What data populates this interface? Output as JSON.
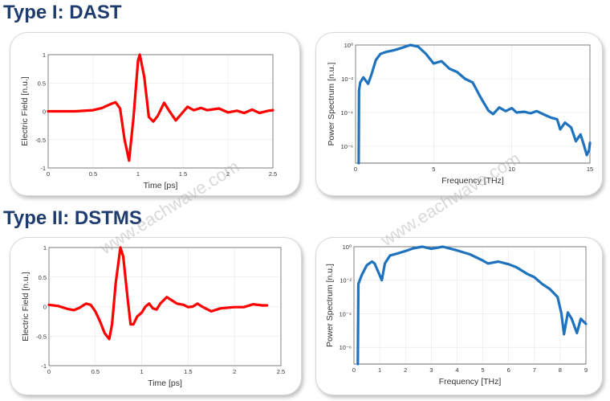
{
  "titles": [
    "Type I: DAST",
    "Type II: DSTMS"
  ],
  "watermark": "www.eachwave.com",
  "chart_data": [
    {
      "type": "line",
      "group": "Type I: DAST",
      "xlabel": "Time [ps]",
      "ylabel": "Electric Field [n.u.]",
      "xlim": [
        0,
        2.5
      ],
      "ylim": [
        -1,
        1
      ],
      "yscale": "linear",
      "grid": true,
      "color": "#ff0000",
      "xticks": [
        0,
        0.5,
        1,
        1.5,
        2,
        2.5
      ],
      "xticklabels": [
        "0",
        "0.5",
        "1",
        "1.5",
        "2",
        "2.5"
      ],
      "yticks": [
        -1,
        -0.5,
        0,
        0.5,
        1
      ],
      "yticklabels": [
        "-1",
        "-0.5",
        "0",
        "0.5",
        "1"
      ],
      "x": [
        0,
        0.3,
        0.5,
        0.6,
        0.7,
        0.75,
        0.8,
        0.85,
        0.9,
        0.95,
        1.0,
        1.02,
        1.07,
        1.12,
        1.17,
        1.22,
        1.29,
        1.35,
        1.42,
        1.48,
        1.55,
        1.62,
        1.7,
        1.77,
        1.9,
        2.0,
        2.1,
        2.18,
        2.27,
        2.35,
        2.45,
        2.5
      ],
      "y": [
        0,
        0,
        0.02,
        0.06,
        0.13,
        0.16,
        0.05,
        -0.5,
        -0.87,
        -0.1,
        0.9,
        1.0,
        0.6,
        -0.1,
        -0.18,
        -0.08,
        0.15,
        0.0,
        -0.16,
        -0.05,
        0.08,
        0.02,
        0.06,
        0.02,
        0.05,
        -0.02,
        0.01,
        -0.03,
        0.03,
        -0.03,
        0.01,
        0.02
      ]
    },
    {
      "type": "line",
      "group": "Type I: DAST",
      "xlabel": "Frequency [THz]",
      "ylabel": "Power Spectrum [n.u.]",
      "xlim": [
        0,
        15
      ],
      "ylim": [
        1e-07,
        1
      ],
      "yscale": "log",
      "grid": true,
      "color": "#1f73be",
      "xticks": [
        0,
        5,
        10,
        15
      ],
      "xticklabels": [
        "0",
        "5",
        "10",
        "15"
      ],
      "yticks": [
        1,
        0.01,
        0.0001,
        1e-06
      ],
      "yticklabels": [
        "10⁰",
        "10⁻²",
        "10⁻⁴",
        "10⁻⁶"
      ],
      "x": [
        0.2,
        0.22,
        0.3,
        0.5,
        0.8,
        1.0,
        1.3,
        1.6,
        2,
        2.5,
        3,
        3.5,
        4,
        4.5,
        5,
        5.5,
        6,
        6.5,
        7,
        7.5,
        8,
        8.5,
        8.8,
        9.2,
        9.6,
        10,
        10.3,
        10.8,
        11.2,
        11.6,
        12,
        12.5,
        12.9,
        13.1,
        13.4,
        13.8,
        14.1,
        14.4,
        14.6,
        14.8,
        14.95,
        15
      ],
      "y": [
        1e-07,
        0.002,
        0.006,
        0.012,
        0.005,
        0.016,
        0.13,
        0.3,
        0.4,
        0.5,
        0.7,
        1.0,
        0.8,
        0.3,
        0.08,
        0.11,
        0.04,
        0.025,
        0.01,
        0.006,
        0.0008,
        0.00013,
        8e-05,
        0.0002,
        0.00012,
        0.00018,
        0.0001,
        0.00011,
        9e-05,
        0.00012,
        8e-05,
        5e-05,
        4e-05,
        1e-05,
        2.5e-05,
        1.3e-05,
        2e-06,
        5e-06,
        1.3e-06,
        3e-07,
        6e-07,
        1.6e-06
      ]
    },
    {
      "type": "line",
      "group": "Type II: DSTMS",
      "xlabel": "Time [ps]",
      "ylabel": "Electric Field [n.u.]",
      "xlim": [
        0,
        2.5
      ],
      "ylim": [
        -1,
        1
      ],
      "yscale": "linear",
      "grid": true,
      "color": "#ff0000",
      "xticks": [
        0,
        0.5,
        1,
        1.5,
        2,
        2.5
      ],
      "xticklabels": [
        "0",
        "0.5",
        "1",
        "1.5",
        "2",
        "2.5"
      ],
      "yticks": [
        -1,
        -0.5,
        0,
        0.5,
        1
      ],
      "yticklabels": [
        "-1",
        "-0.5",
        "0",
        "0.5",
        "1"
      ],
      "x": [
        0,
        0.1,
        0.2,
        0.27,
        0.33,
        0.4,
        0.45,
        0.5,
        0.55,
        0.6,
        0.65,
        0.68,
        0.72,
        0.77,
        0.8,
        0.85,
        0.88,
        0.91,
        0.95,
        1.0,
        1.04,
        1.08,
        1.12,
        1.16,
        1.2,
        1.27,
        1.33,
        1.38,
        1.45,
        1.5,
        1.55,
        1.6,
        1.65,
        1.75,
        1.85,
        2.0,
        2.1,
        2.2,
        2.3,
        2.35
      ],
      "y": [
        0.03,
        0.01,
        -0.04,
        -0.06,
        -0.02,
        0.05,
        0.03,
        -0.08,
        -0.25,
        -0.45,
        -0.55,
        -0.3,
        0.4,
        1.0,
        0.85,
        0.1,
        -0.3,
        -0.3,
        -0.17,
        -0.1,
        0.0,
        0.05,
        -0.03,
        -0.05,
        0.05,
        0.16,
        0.1,
        0.05,
        0.03,
        -0.01,
        0.0,
        0.05,
        0.0,
        -0.08,
        -0.03,
        -0.01,
        -0.01,
        0.04,
        0.02,
        0.02
      ]
    },
    {
      "type": "line",
      "group": "Type II: DSTMS",
      "xlabel": "Frequency [THz]",
      "ylabel": "Power Spectrum [n.u.]",
      "xlim": [
        0,
        9
      ],
      "ylim": [
        1e-07,
        1
      ],
      "yscale": "log",
      "grid": true,
      "color": "#1f73be",
      "xticks": [
        0,
        1,
        2,
        3,
        4,
        5,
        6,
        7,
        8,
        9
      ],
      "xticklabels": [
        "0",
        "1",
        "2",
        "3",
        "4",
        "5",
        "6",
        "7",
        "8",
        "9"
      ],
      "yticks": [
        1,
        0.01,
        0.0001,
        1e-06
      ],
      "yticklabels": [
        "10⁰",
        "10⁻²",
        "10⁻⁴",
        "10⁻⁶"
      ],
      "x": [
        0.15,
        0.17,
        0.3,
        0.5,
        0.7,
        0.8,
        0.95,
        1.08,
        1.2,
        1.4,
        1.7,
        2,
        2.3,
        2.65,
        3,
        3.45,
        4,
        4.5,
        5,
        5.2,
        5.6,
        6,
        6.3,
        6.7,
        7,
        7.3,
        7.6,
        7.9,
        8.05,
        8.15,
        8.3,
        8.45,
        8.65,
        8.8,
        9
      ],
      "y": [
        1e-07,
        0.006,
        0.02,
        0.08,
        0.13,
        0.1,
        0.03,
        0.01,
        0.1,
        0.3,
        0.4,
        0.55,
        0.8,
        1.0,
        0.75,
        1.0,
        0.6,
        0.35,
        0.15,
        0.1,
        0.13,
        0.09,
        0.06,
        0.025,
        0.015,
        0.006,
        0.003,
        0.001,
        0.0001,
        6e-06,
        0.00012,
        5e-05,
        7e-06,
        5e-05,
        2.5e-05
      ]
    }
  ]
}
